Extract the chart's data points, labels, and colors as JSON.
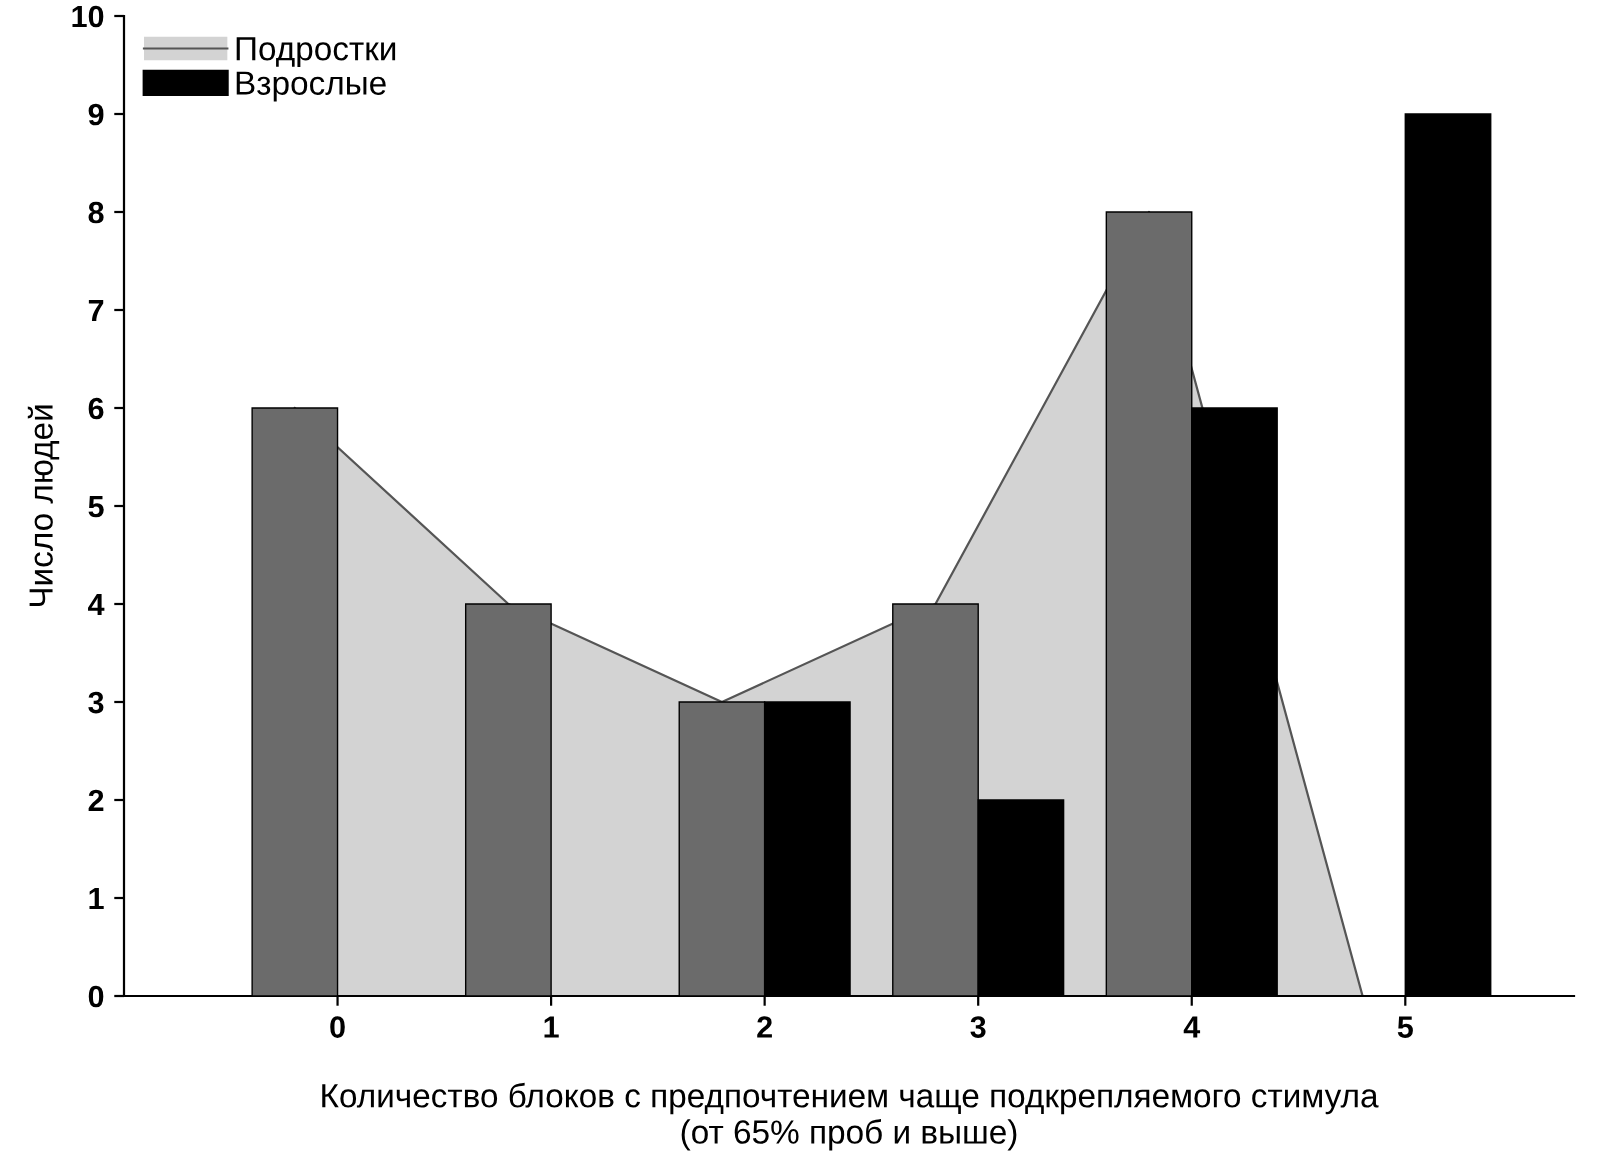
{
  "chart_data": {
    "type": "bar",
    "xlabel": "Количество блоков с предпочтением чаще подкрепляемого стимула\n(от 65% проб и выше)",
    "ylabel": "Число людей",
    "categories": [
      "0",
      "1",
      "2",
      "3",
      "4",
      "5"
    ],
    "series": [
      {
        "name": "Подростки",
        "type": "area",
        "color": "#d3d3d3",
        "values": [
          6,
          4,
          3,
          4,
          8,
          0
        ]
      },
      {
        "color": "#6b6b6b",
        "values": [
          6,
          4,
          3,
          4,
          8,
          0
        ]
      },
      {
        "name": "Взрослые",
        "color": "#000000",
        "values": [
          0,
          0,
          3,
          2,
          6,
          9
        ]
      }
    ],
    "ylim": [
      0,
      10
    ],
    "yticks": [
      0,
      1,
      2,
      3,
      4,
      5,
      6,
      7,
      8,
      9,
      10
    ],
    "grid": false,
    "legend": "top left"
  }
}
